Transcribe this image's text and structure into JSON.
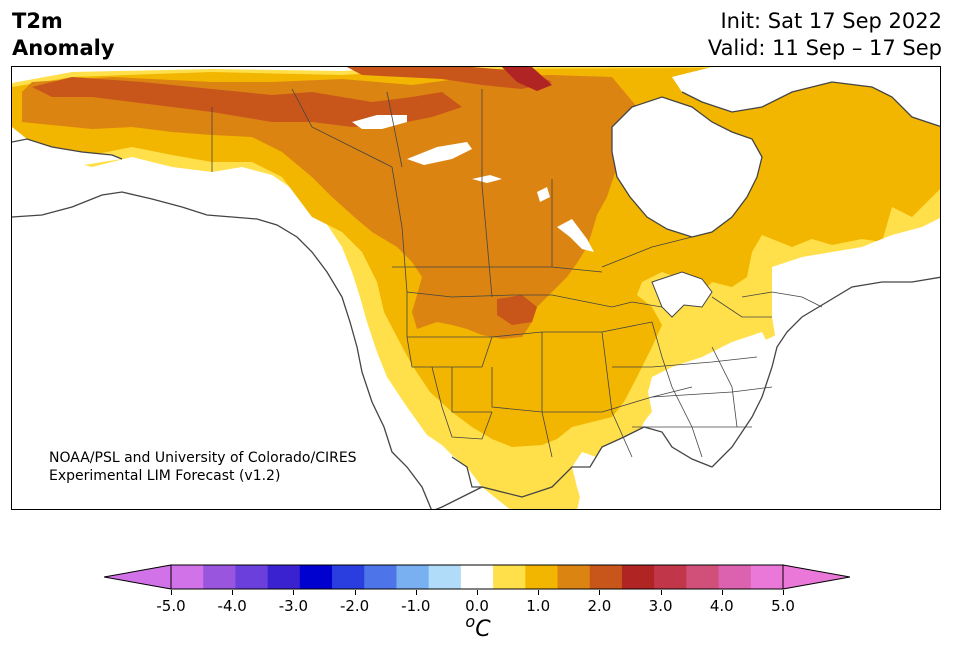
{
  "title": {
    "variable_line1": "T2m",
    "variable_line2": "Anomaly",
    "init": "Init: Sat 17 Sep 2022",
    "valid": "Valid: 11 Sep – 17 Sep"
  },
  "credit": {
    "line1": "NOAA/PSL and University of Colorado/CIRES",
    "line2": "Experimental LIM Forecast (v1.2)"
  },
  "colorbar": {
    "unit": "oC",
    "ticks": [
      "-5.0",
      "-4.0",
      "-3.0",
      "-2.0",
      "-1.0",
      "0.0",
      "1.0",
      "2.0",
      "3.0",
      "4.0",
      "5.0"
    ],
    "levels": [
      -5.0,
      -4.5,
      -4.0,
      -3.5,
      -3.0,
      -2.5,
      -2.0,
      -1.5,
      -1.0,
      -0.5,
      0.5,
      1.0,
      1.5,
      2.0,
      2.5,
      3.0,
      3.5,
      4.0,
      4.5,
      5.0
    ],
    "colors": [
      "#d272e8",
      "#9a55de",
      "#6a3fdc",
      "#3a22d0",
      "#0000cf",
      "#2a3ee0",
      "#4e74ea",
      "#78b0f2",
      "#b0dcfa",
      "#ffffff",
      "#ffe04a",
      "#f2b600",
      "#dc8412",
      "#c8561a",
      "#b02424",
      "#c2364a",
      "#d0507a",
      "#dc62b0",
      "#ea78d8"
    ],
    "under_color": "#d272e8",
    "over_color": "#ea78d8"
  },
  "map": {
    "land_color": "#ffffff",
    "coast_color": "#444444",
    "anomaly_colors": {
      "c05": "#ffe04a",
      "c10": "#f2b600",
      "c15": "#dc8412",
      "c20": "#c8561a",
      "c25": "#b02424"
    }
  }
}
